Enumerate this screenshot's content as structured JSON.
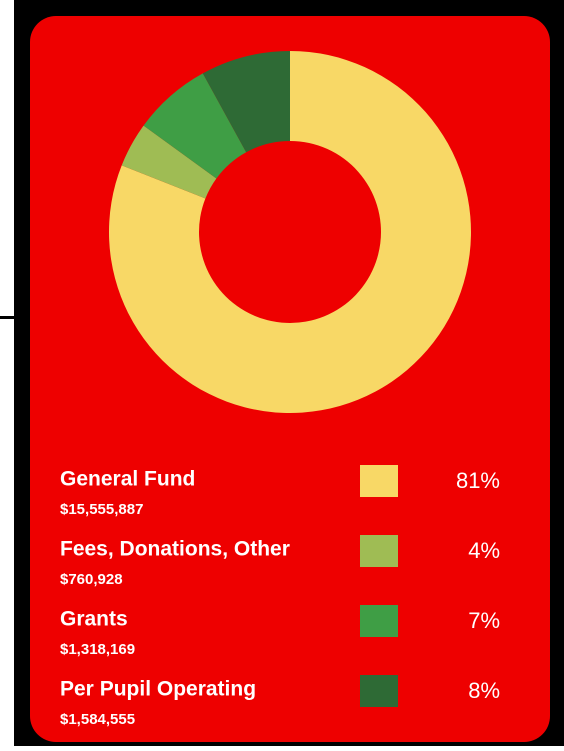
{
  "chart_data": {
    "type": "donut",
    "categories": [
      "General Fund",
      "Fees, Donations, Other",
      "Grants",
      "Per Pupil Operating"
    ],
    "amounts": [
      "$15,555,887",
      "$760,928",
      "$1,318,169",
      "$1,584,555"
    ],
    "values": [
      81,
      4,
      7,
      8
    ],
    "value_labels": [
      "81%",
      "4%",
      "7%",
      "8%"
    ],
    "colors": [
      "#f8d866",
      "#9fbc54",
      "#3f9e45",
      "#2e6a35"
    ]
  }
}
